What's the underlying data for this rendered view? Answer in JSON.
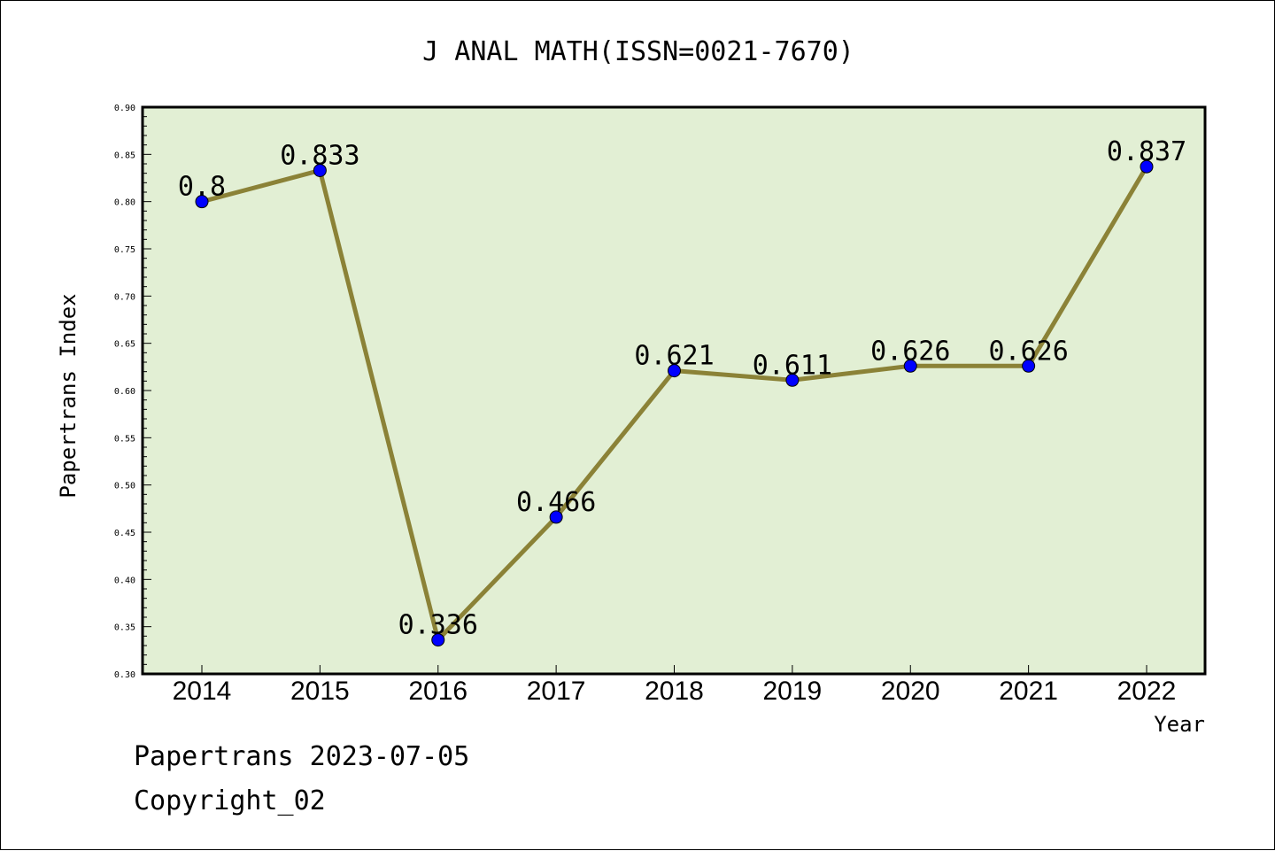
{
  "chart_data": {
    "type": "line",
    "title": "J ANAL MATH(ISSN=0021-7670)",
    "xlabel": "Year",
    "ylabel": "Papertrans Index",
    "categories": [
      "2014",
      "2015",
      "2016",
      "2017",
      "2018",
      "2019",
      "2020",
      "2021",
      "2022"
    ],
    "series": [
      {
        "values": [
          0.8,
          0.833,
          0.336,
          0.466,
          0.621,
          0.611,
          0.626,
          0.626,
          0.837
        ],
        "labels": [
          "0.8",
          "0.833",
          "0.336",
          "0.466",
          "0.621",
          "0.611",
          "0.626",
          "0.626",
          "0.837"
        ]
      }
    ],
    "ylim": [
      0.3,
      0.9
    ],
    "yticks": [
      "0.30",
      "0.35",
      "0.40",
      "0.45",
      "0.50",
      "0.55",
      "0.60",
      "0.65",
      "0.70",
      "0.75",
      "0.80",
      "0.85",
      "0.90"
    ],
    "grid": false,
    "legend": "none",
    "colors": {
      "line": "#8b8237",
      "marker": "#0000ff",
      "plot_background": "#e2efd4"
    }
  },
  "footer": {
    "date_line": "Papertrans 2023-07-05",
    "copyright": "Copyright_02"
  }
}
